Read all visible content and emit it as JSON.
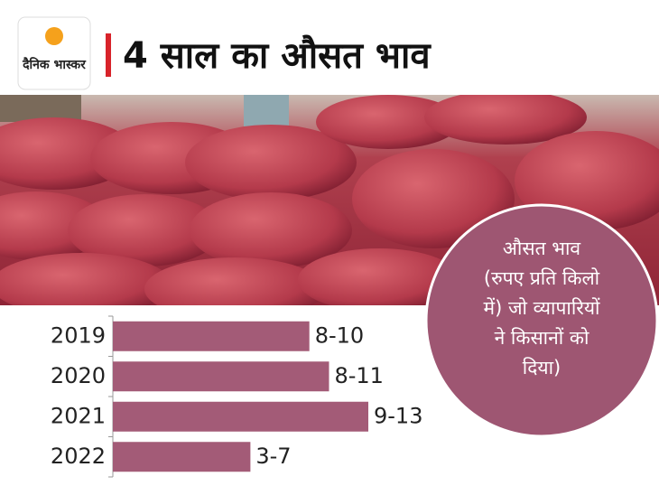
{
  "brand": "दैनिक भास्कर",
  "chart_data": {
    "type": "bar",
    "orientation": "horizontal",
    "title": "4 साल का औसत भाव",
    "categories": [
      "2019",
      "2020",
      "2021",
      "2022"
    ],
    "values": [
      10,
      11,
      13,
      7
    ],
    "value_labels": [
      "8-10",
      "8-11",
      "9-13",
      "3-7"
    ],
    "color": "#a35b77",
    "xlim": [
      0,
      13
    ],
    "annotation": [
      "औसत भाव",
      "(रुपए प्रति किलो",
      "में) जो व्यापारियों",
      "ने किसानों को",
      "दिया)"
    ]
  }
}
